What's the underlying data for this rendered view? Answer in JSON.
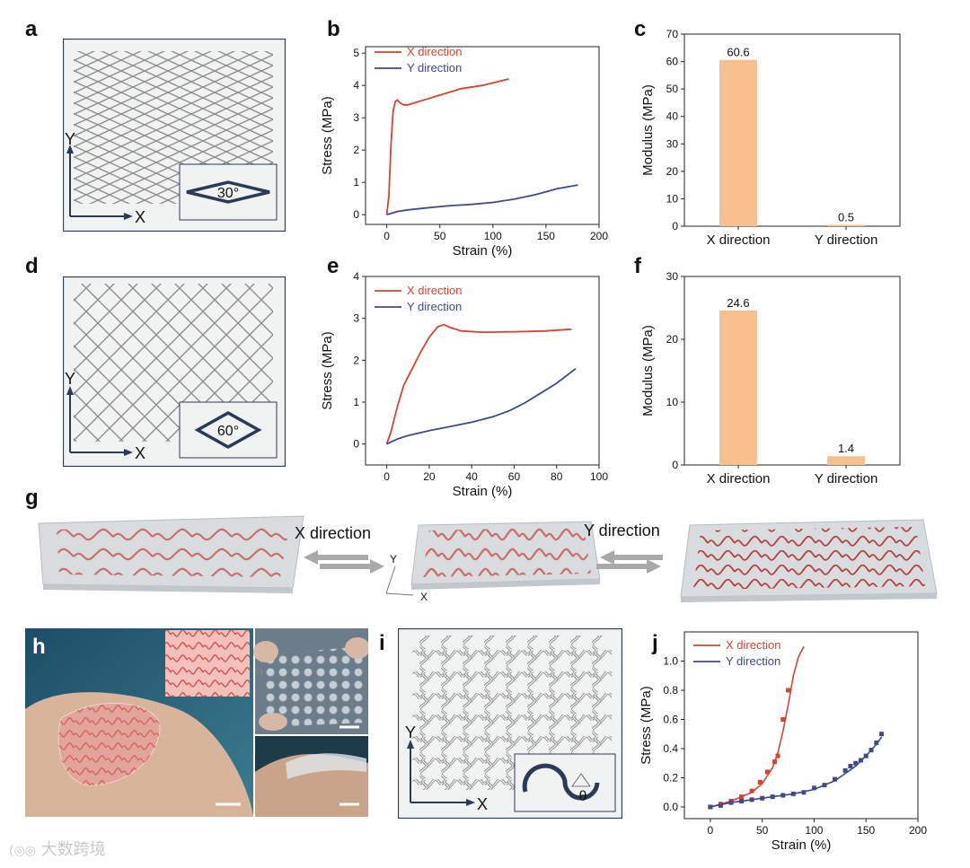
{
  "panel_labels": {
    "a": "a",
    "b": "b",
    "c": "c",
    "d": "d",
    "e": "e",
    "f": "f",
    "g": "g",
    "h": "h",
    "i": "i",
    "j": "j"
  },
  "schematic_a": {
    "x_axis": "X",
    "y_axis": "Y",
    "inset_angle": "30°"
  },
  "schematic_d": {
    "x_axis": "X",
    "y_axis": "Y",
    "inset_angle": "60°"
  },
  "schematic_i": {
    "x_axis": "X",
    "y_axis": "Y",
    "inset_angle": "θ"
  },
  "panel_g": {
    "left_arrow_label": "X direction",
    "right_arrow_label": "Y direction",
    "axis_x": "X",
    "axis_y": "Y"
  },
  "watermark": "大数跨境",
  "colors": {
    "x_series": "#d8422f",
    "y_series": "#3f4a86",
    "bar": "#f7c08e",
    "diagram_stroke": "#2b3a55",
    "pattern_red": "#c96060"
  },
  "chart_data": [
    {
      "id": "b",
      "type": "line",
      "title": "",
      "xlabel": "Strain (%)",
      "ylabel": "Stress (MPa)",
      "xlim": [
        -20,
        200
      ],
      "ylim": [
        -0.3,
        5.2
      ],
      "xticks": [
        0,
        50,
        100,
        150,
        200
      ],
      "yticks": [
        0,
        1,
        2,
        3,
        4,
        5
      ],
      "series": [
        {
          "name": "X direction",
          "color": "#d8422f",
          "x": [
            0,
            2,
            4,
            6,
            8,
            10,
            13,
            16,
            20,
            30,
            50,
            70,
            90,
            115
          ],
          "y": [
            0,
            0.6,
            2.2,
            3.2,
            3.5,
            3.55,
            3.45,
            3.4,
            3.4,
            3.5,
            3.7,
            3.9,
            4.0,
            4.2
          ]
        },
        {
          "name": "Y direction",
          "color": "#3f4a86",
          "x": [
            0,
            5,
            10,
            20,
            40,
            60,
            80,
            100,
            120,
            140,
            160,
            180
          ],
          "y": [
            0,
            0.05,
            0.1,
            0.15,
            0.22,
            0.28,
            0.32,
            0.38,
            0.48,
            0.62,
            0.8,
            0.92
          ]
        }
      ]
    },
    {
      "id": "c",
      "type": "bar",
      "title": "",
      "xlabel": "",
      "ylabel": "Modulus (MPa)",
      "ylim": [
        0,
        70
      ],
      "yticks": [
        0,
        10,
        20,
        30,
        40,
        50,
        60,
        70
      ],
      "categories": [
        "X direction",
        "Y direction"
      ],
      "values": [
        60.6,
        0.5
      ],
      "value_labels": [
        "60.6",
        "0.5"
      ]
    },
    {
      "id": "e",
      "type": "line",
      "title": "",
      "xlabel": "Strain (%)",
      "ylabel": "Stress (MPa)",
      "xlim": [
        -10,
        100
      ],
      "ylim": [
        -0.5,
        4
      ],
      "xticks": [
        0,
        20,
        40,
        60,
        80,
        100
      ],
      "yticks": [
        0,
        1,
        2,
        3,
        4
      ],
      "series": [
        {
          "name": "X direction",
          "color": "#d8422f",
          "x": [
            0,
            2,
            5,
            8,
            12,
            16,
            20,
            24,
            27,
            30,
            35,
            45,
            60,
            75,
            87
          ],
          "y": [
            0,
            0.3,
            0.9,
            1.4,
            1.8,
            2.2,
            2.55,
            2.8,
            2.85,
            2.78,
            2.7,
            2.67,
            2.68,
            2.7,
            2.74
          ]
        },
        {
          "name": "Y direction",
          "color": "#3f4a86",
          "x": [
            0,
            5,
            10,
            20,
            30,
            40,
            50,
            58,
            65,
            72,
            80,
            89
          ],
          "y": [
            0,
            0.12,
            0.2,
            0.32,
            0.42,
            0.52,
            0.65,
            0.8,
            0.98,
            1.2,
            1.45,
            1.8
          ]
        }
      ]
    },
    {
      "id": "f",
      "type": "bar",
      "title": "",
      "xlabel": "",
      "ylabel": "Modulus (MPa)",
      "ylim": [
        0,
        30
      ],
      "yticks": [
        0,
        10,
        20,
        30
      ],
      "categories": [
        "X direction",
        "Y direction"
      ],
      "values": [
        24.6,
        1.4
      ],
      "value_labels": [
        "24.6",
        "1.4"
      ]
    },
    {
      "id": "j",
      "type": "scatter",
      "title": "",
      "xlabel": "Strain (%)",
      "ylabel": "Stress (MPa)",
      "xlim": [
        -25,
        200
      ],
      "ylim": [
        -0.08,
        1.2
      ],
      "xticks": [
        0,
        50,
        100,
        150,
        200
      ],
      "yticks": [
        0.0,
        0.2,
        0.4,
        0.6,
        0.8,
        1.0
      ],
      "series": [
        {
          "name": "X direction",
          "color": "#d8422f",
          "points_x": [
            0,
            10,
            20,
            30,
            40,
            48,
            55,
            62,
            65,
            70,
            75
          ],
          "points_y": [
            0.0,
            0.02,
            0.04,
            0.07,
            0.11,
            0.17,
            0.24,
            0.31,
            0.35,
            0.6,
            0.8
          ],
          "fit_x": [
            0,
            10,
            20,
            30,
            40,
            50,
            60,
            65,
            70,
            75,
            80,
            85,
            90
          ],
          "fit_y": [
            0,
            0.02,
            0.04,
            0.07,
            0.1,
            0.16,
            0.27,
            0.37,
            0.52,
            0.7,
            0.9,
            1.03,
            1.1
          ]
        },
        {
          "name": "Y direction",
          "color": "#3f4a86",
          "points_x": [
            0,
            10,
            20,
            30,
            40,
            50,
            60,
            70,
            80,
            90,
            100,
            110,
            120,
            130,
            135,
            140,
            145,
            150,
            155,
            160,
            165
          ],
          "points_y": [
            0.0,
            0.01,
            0.03,
            0.04,
            0.05,
            0.06,
            0.07,
            0.08,
            0.09,
            0.1,
            0.13,
            0.15,
            0.19,
            0.25,
            0.28,
            0.3,
            0.32,
            0.35,
            0.39,
            0.44,
            0.5
          ],
          "fit_x": [
            0,
            20,
            40,
            60,
            80,
            100,
            120,
            140,
            150,
            160,
            165
          ],
          "fit_y": [
            0.0,
            0.03,
            0.05,
            0.07,
            0.09,
            0.12,
            0.18,
            0.28,
            0.35,
            0.43,
            0.48
          ]
        }
      ]
    }
  ]
}
